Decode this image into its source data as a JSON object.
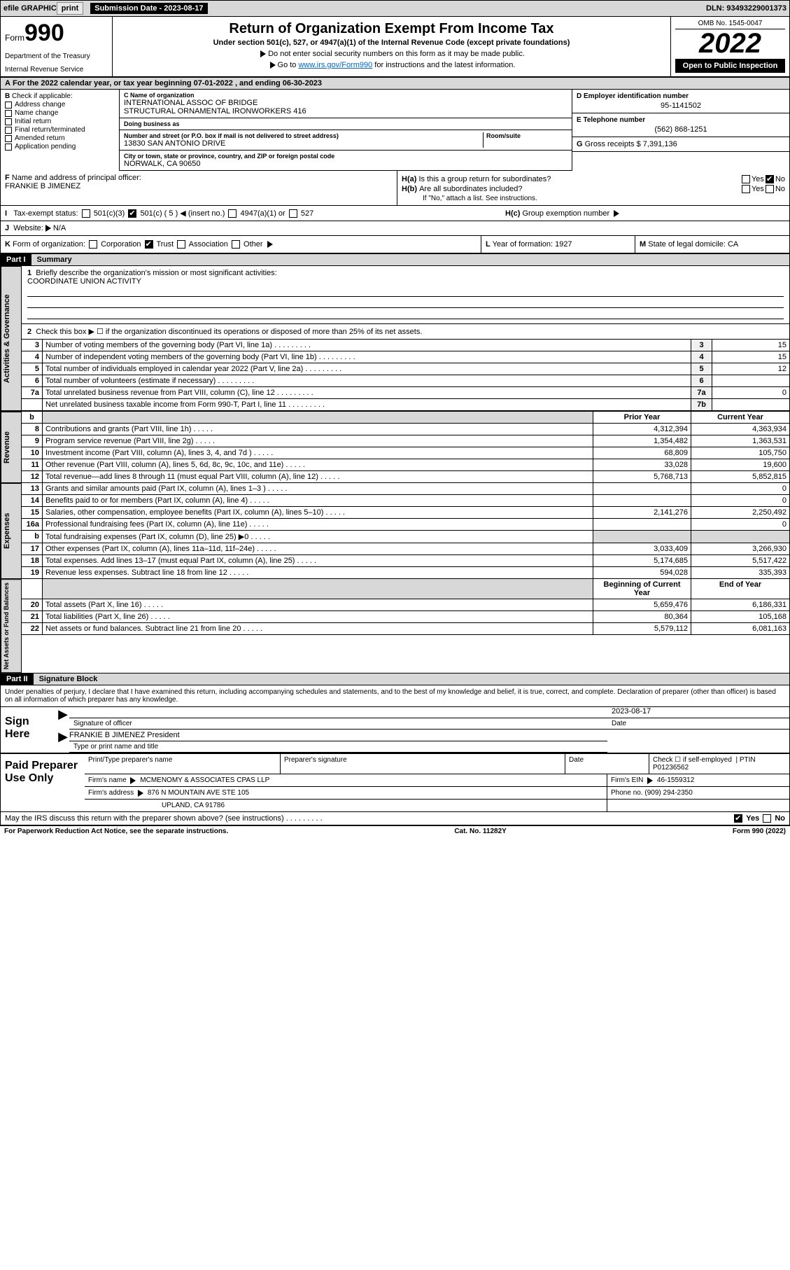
{
  "topbar": {
    "efile": "efile GRAPHIC",
    "print": "print",
    "sub_label": "Submission Date - 2023-08-17",
    "dln": "DLN: 93493229001373"
  },
  "header": {
    "form_prefix": "Form",
    "form_no": "990",
    "dept": "Department of the Treasury",
    "irs": "Internal Revenue Service",
    "title": "Return of Organization Exempt From Income Tax",
    "sub": "Under section 501(c), 527, or 4947(a)(1) of the Internal Revenue Code (except private foundations)",
    "note1": "Do not enter social security numbers on this form as it may be made public.",
    "note2_pre": "Go to ",
    "note2_link": "www.irs.gov/Form990",
    "note2_post": " for instructions and the latest information.",
    "omb": "OMB No. 1545-0047",
    "year": "2022",
    "open": "Open to Public Inspection"
  },
  "ty": {
    "line": "For the 2022 calendar year, or tax year beginning 07-01-2022   , and ending 06-30-2023"
  },
  "B": {
    "label": "Check if applicable:",
    "items": [
      "Address change",
      "Name change",
      "Initial return",
      "Final return/terminated",
      "Amended return",
      "Application pending"
    ]
  },
  "C": {
    "name_label": "Name of organization",
    "name1": "INTERNATIONAL ASSOC OF BRIDGE",
    "name2": "STRUCTURAL ORNAMENTAL IRONWORKERS 416",
    "dba_label": "Doing business as",
    "street_label": "Number and street (or P.O. box if mail is not delivered to street address)",
    "room_label": "Room/suite",
    "street": "13830 SAN ANTONIO DRIVE",
    "city_label": "City or town, state or province, country, and ZIP or foreign postal code",
    "city": "NORWALK, CA  90650"
  },
  "D": {
    "label": "Employer identification number",
    "val": "95-1141502"
  },
  "E": {
    "label": "Telephone number",
    "val": "(562) 868-1251"
  },
  "G": {
    "label": "Gross receipts $",
    "val": "7,391,136"
  },
  "F": {
    "label": "Name and address of principal officer:",
    "name": "FRANKIE B JIMENEZ"
  },
  "H": {
    "a": "Is this a group return for subordinates?",
    "b": "Are all subordinates included?",
    "bnote": "If \"No,\" attach a list. See instructions.",
    "c": "Group exemption number"
  },
  "I": {
    "label": "Tax-exempt status:",
    "c3": "501(c)(3)",
    "c5": "501(c) ( 5 )",
    "ins": "(insert no.)",
    "a1": "4947(a)(1) or",
    "s527": "527"
  },
  "J": {
    "label": "Website:",
    "val": "N/A"
  },
  "K": {
    "label": "Form of organization:",
    "corp": "Corporation",
    "trust": "Trust",
    "assoc": "Association",
    "other": "Other"
  },
  "L": {
    "label": "Year of formation:",
    "val": "1927"
  },
  "M": {
    "label": "State of legal domicile:",
    "val": "CA"
  },
  "partI": {
    "title": "Part I",
    "sub": "Summary"
  },
  "summary": {
    "mission_label": "Briefly describe the organization's mission or most significant activities:",
    "mission": "COORDINATE UNION ACTIVITY",
    "line2": "Check this box ▶ ☐  if the organization discontinued its operations or disposed of more than 25% of its net assets.",
    "lines_gov": [
      {
        "n": "3",
        "d": "Number of voting members of the governing body (Part VI, line 1a)",
        "b": "3",
        "v": "15"
      },
      {
        "n": "4",
        "d": "Number of independent voting members of the governing body (Part VI, line 1b)",
        "b": "4",
        "v": "15"
      },
      {
        "n": "5",
        "d": "Total number of individuals employed in calendar year 2022 (Part V, line 2a)",
        "b": "5",
        "v": "12"
      },
      {
        "n": "6",
        "d": "Total number of volunteers (estimate if necessary)",
        "b": "6",
        "v": ""
      },
      {
        "n": "7a",
        "d": "Total unrelated business revenue from Part VIII, column (C), line 12",
        "b": "7a",
        "v": "0"
      },
      {
        "n": "",
        "d": "Net unrelated business taxable income from Form 990-T, Part I, line 11",
        "b": "7b",
        "v": ""
      }
    ],
    "col_prior": "Prior Year",
    "col_curr": "Current Year",
    "revenue": [
      {
        "n": "8",
        "d": "Contributions and grants (Part VIII, line 1h)",
        "p": "4,312,394",
        "c": "4,363,934"
      },
      {
        "n": "9",
        "d": "Program service revenue (Part VIII, line 2g)",
        "p": "1,354,482",
        "c": "1,363,531"
      },
      {
        "n": "10",
        "d": "Investment income (Part VIII, column (A), lines 3, 4, and 7d )",
        "p": "68,809",
        "c": "105,750"
      },
      {
        "n": "11",
        "d": "Other revenue (Part VIII, column (A), lines 5, 6d, 8c, 9c, 10c, and 11e)",
        "p": "33,028",
        "c": "19,600"
      },
      {
        "n": "12",
        "d": "Total revenue—add lines 8 through 11 (must equal Part VIII, column (A), line 12)",
        "p": "5,768,713",
        "c": "5,852,815"
      }
    ],
    "expenses": [
      {
        "n": "13",
        "d": "Grants and similar amounts paid (Part IX, column (A), lines 1–3 )",
        "p": "",
        "c": "0"
      },
      {
        "n": "14",
        "d": "Benefits paid to or for members (Part IX, column (A), line 4)",
        "p": "",
        "c": "0"
      },
      {
        "n": "15",
        "d": "Salaries, other compensation, employee benefits (Part IX, column (A), lines 5–10)",
        "p": "2,141,276",
        "c": "2,250,492"
      },
      {
        "n": "16a",
        "d": "Professional fundraising fees (Part IX, column (A), line 11e)",
        "p": "",
        "c": "0"
      },
      {
        "n": "b",
        "d": "Total fundraising expenses (Part IX, column (D), line 25) ▶0",
        "p": "shade",
        "c": "shade"
      },
      {
        "n": "17",
        "d": "Other expenses (Part IX, column (A), lines 11a–11d, 11f–24e)",
        "p": "3,033,409",
        "c": "3,266,930"
      },
      {
        "n": "18",
        "d": "Total expenses. Add lines 13–17 (must equal Part IX, column (A), line 25)",
        "p": "5,174,685",
        "c": "5,517,422"
      },
      {
        "n": "19",
        "d": "Revenue less expenses. Subtract line 18 from line 12",
        "p": "594,028",
        "c": "335,393"
      }
    ],
    "col_beg": "Beginning of Current Year",
    "col_end": "End of Year",
    "netassets": [
      {
        "n": "20",
        "d": "Total assets (Part X, line 16)",
        "p": "5,659,476",
        "c": "6,186,331"
      },
      {
        "n": "21",
        "d": "Total liabilities (Part X, line 26)",
        "p": "80,364",
        "c": "105,168"
      },
      {
        "n": "22",
        "d": "Net assets or fund balances. Subtract line 21 from line 20",
        "p": "5,579,112",
        "c": "6,081,163"
      }
    ],
    "side_gov": "Activities & Governance",
    "side_rev": "Revenue",
    "side_exp": "Expenses",
    "side_net": "Net Assets or Fund Balances"
  },
  "partII": {
    "title": "Part II",
    "sub": "Signature Block"
  },
  "sig": {
    "intro": "Under penalties of perjury, I declare that I have examined this return, including accompanying schedules and statements, and to the best of my knowledge and belief, it is true, correct, and complete. Declaration of preparer (other than officer) is based on all information of which preparer has any knowledge.",
    "sign_here": "Sign Here",
    "sig_officer": "Signature of officer",
    "date": "Date",
    "date_val": "2023-08-17",
    "name": "FRANKIE B JIMENEZ  President",
    "name_label": "Type or print name and title"
  },
  "prep": {
    "label": "Paid Preparer Use Only",
    "h1": "Print/Type preparer's name",
    "h2": "Preparer's signature",
    "h3": "Date",
    "h4_check": "Check ☐ if self-employed",
    "h4_ptin": "PTIN",
    "ptin": "P01236562",
    "firm_name_l": "Firm's name",
    "firm_name": "MCMENOMY & ASSOCIATES CPAS LLP",
    "firm_ein_l": "Firm's EIN",
    "firm_ein": "46-1559312",
    "firm_addr_l": "Firm's address",
    "firm_addr1": "876 N MOUNTAIN AVE STE 105",
    "firm_addr2": "UPLAND, CA  91786",
    "phone_l": "Phone no.",
    "phone": "(909) 294-2350"
  },
  "discuss": {
    "q": "May the IRS discuss this return with the preparer shown above? (see instructions)",
    "yes": "Yes",
    "no": "No"
  },
  "footer": {
    "l": "For Paperwork Reduction Act Notice, see the separate instructions.",
    "m": "Cat. No. 11282Y",
    "r": "Form 990 (2022)"
  },
  "colors": {
    "shade": "#d8d8d8",
    "link": "#0066cc"
  }
}
